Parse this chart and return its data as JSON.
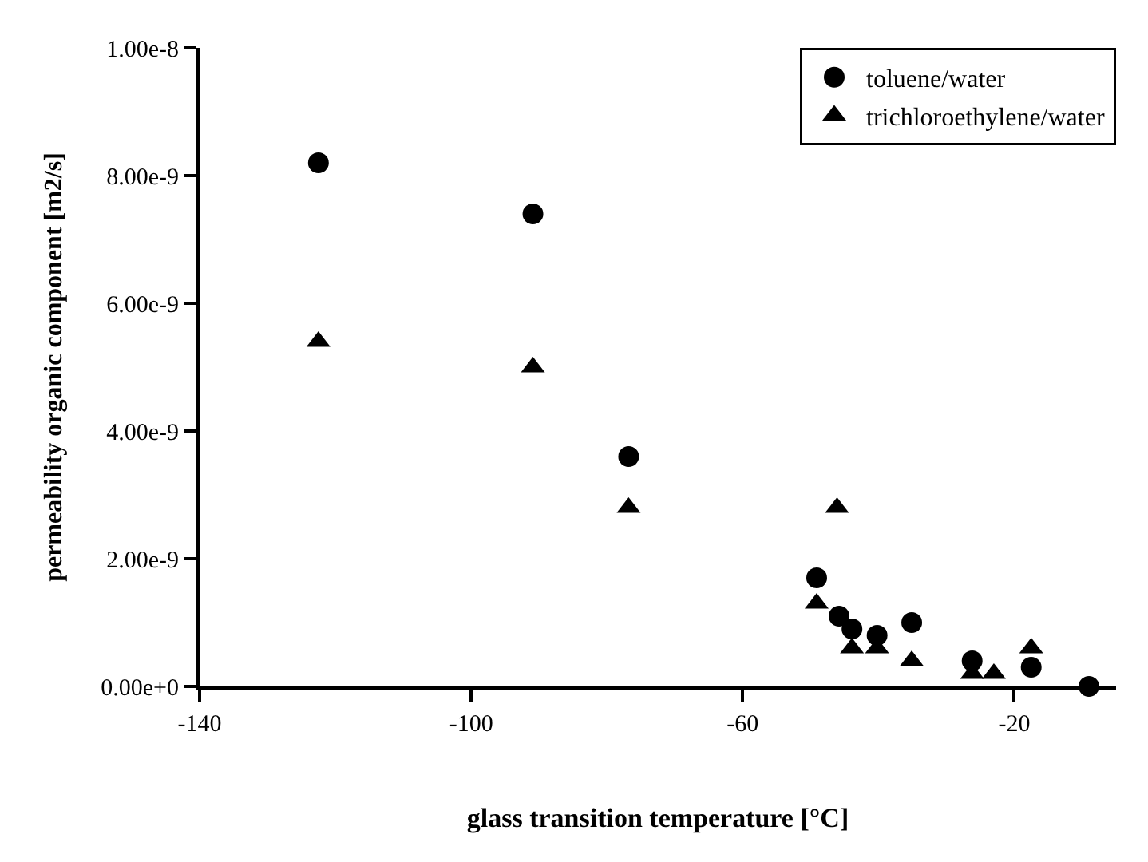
{
  "chart_data": {
    "type": "scatter",
    "xlabel": "glass transition temperature [°C]",
    "ylabel": "permeability organic component [m2/s]",
    "xlim": [
      -140,
      -5
    ],
    "xticks": [
      -140,
      -100,
      -60,
      -20
    ],
    "ylim": [
      0,
      1e-08
    ],
    "yticks": [
      {
        "value": 0,
        "label": "0.00e+0"
      },
      {
        "value": 2e-09,
        "label": "2.00e-9"
      },
      {
        "value": 4e-09,
        "label": "4.00e-9"
      },
      {
        "value": 6e-09,
        "label": "6.00e-9"
      },
      {
        "value": 8e-09,
        "label": "8.00e-9"
      },
      {
        "value": 1e-08,
        "label": "1.00e-8"
      }
    ],
    "grid": false,
    "legend": "top right",
    "series": [
      {
        "name": "toluene/water",
        "color": "#000000",
        "marker": "circle",
        "x": [
          -122.5,
          -90.9,
          -76.8,
          -49.1,
          -45.8,
          -43.9,
          -40.2,
          -35.1,
          -26.2,
          -17.5,
          -9.0
        ],
        "values": [
          8.2e-09,
          7.4e-09,
          3.6e-09,
          1.7e-09,
          1.1e-09,
          9e-10,
          8e-10,
          1e-09,
          4e-10,
          3e-10,
          0.0
        ]
      },
      {
        "name": "trichloroethylene/water",
        "color": "#000000",
        "marker": "triangle",
        "x": [
          -122.5,
          -90.9,
          -76.8,
          -46.1,
          -49.1,
          -43.9,
          -40.2,
          -35.1,
          -26.2,
          -23.0,
          -17.5
        ],
        "values": [
          5.4e-09,
          5e-09,
          2.8e-09,
          2.8e-09,
          1.3e-09,
          6e-10,
          6e-10,
          4e-10,
          2e-10,
          2e-10,
          6e-10
        ]
      }
    ]
  }
}
